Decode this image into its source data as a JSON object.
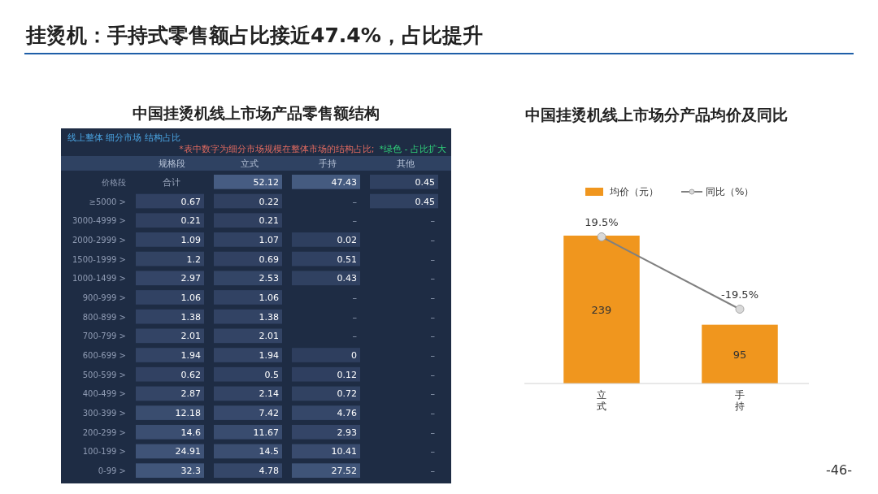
{
  "chart_data": [
    {
      "type": "other",
      "title": "挂烫机：手持式零售额占比接近47.4%，占比提升",
      "annotations": [
        "-46-"
      ]
    },
    {
      "type": "heatmap",
      "title": "中国挂烫机线上市场产品零售额结构",
      "subtitle": "线上整体 细分市场 结构占比",
      "annotations": [
        "*表中数字为细分市场规模在整体市场的结构占比;",
        "*绿色 - 占比扩大"
      ],
      "categories": [
        "规格段",
        "立式",
        "手持",
        "其他"
      ],
      "y_categories": [
        "价格段",
        "≥5000 >",
        "3000-4999 >",
        "2000-2999 >",
        "1500-1999 >",
        "1000-1499 >",
        "900-999 >",
        "800-899 >",
        "700-799 >",
        "600-699 >",
        "500-599 >",
        "400-499 >",
        "300-399 >",
        "200-299 >",
        "100-199 >",
        "0-99 >"
      ],
      "cells": [
        [
          null,
          52.12,
          47.43,
          0.45
        ],
        [
          0.67,
          0.22,
          null,
          0.45
        ],
        [
          0.21,
          0.21,
          null,
          null
        ],
        [
          1.09,
          1.07,
          0.02,
          null
        ],
        [
          1.2,
          0.69,
          0.51,
          null
        ],
        [
          2.97,
          2.53,
          0.43,
          null
        ],
        [
          1.06,
          1.06,
          null,
          null
        ],
        [
          1.38,
          1.38,
          null,
          null
        ],
        [
          2.01,
          2.01,
          null,
          null
        ],
        [
          1.94,
          1.94,
          0,
          null
        ],
        [
          0.62,
          0.5,
          0.12,
          null
        ],
        [
          2.87,
          2.14,
          0.72,
          null
        ],
        [
          12.18,
          7.42,
          4.76,
          null
        ],
        [
          14.6,
          11.67,
          2.93,
          null
        ],
        [
          24.91,
          14.5,
          10.41,
          null
        ],
        [
          32.3,
          4.78,
          27.52,
          null
        ]
      ],
      "cell_labels": [
        [
          "合计",
          "52.12",
          "47.43",
          "0.45"
        ],
        [
          "0.67",
          "0.22",
          "–",
          "0.45"
        ],
        [
          "0.21",
          "0.21",
          "–",
          "–"
        ],
        [
          "1.09",
          "1.07",
          "0.02",
          "–"
        ],
        [
          "1.2",
          "0.69",
          "0.51",
          "–"
        ],
        [
          "2.97",
          "2.53",
          "0.43",
          "–"
        ],
        [
          "1.06",
          "1.06",
          "–",
          "–"
        ],
        [
          "1.38",
          "1.38",
          "–",
          "–"
        ],
        [
          "2.01",
          "2.01",
          "–",
          "–"
        ],
        [
          "1.94",
          "1.94",
          "0",
          "–"
        ],
        [
          "0.62",
          "0.5",
          "0.12",
          "–"
        ],
        [
          "2.87",
          "2.14",
          "0.72",
          "–"
        ],
        [
          "12.18",
          "7.42",
          "4.76",
          "–"
        ],
        [
          "14.6",
          "11.67",
          "2.93",
          "–"
        ],
        [
          "24.91",
          "14.5",
          "10.41",
          "–"
        ],
        [
          "32.3",
          "4.78",
          "27.52",
          "–"
        ]
      ]
    },
    {
      "type": "bar",
      "title": "中国挂烫机线上市场分产品均价及同比",
      "categories": [
        "立式",
        "手持"
      ],
      "legend": "top",
      "data_labels": true,
      "series": [
        {
          "name": "均价（元）",
          "color": "#f0961e",
          "values": [
            239,
            95
          ]
        },
        {
          "name": "同比（%）",
          "type": "line",
          "axis": "y2",
          "color": "#808080",
          "marker": "circle",
          "values": [
            19.5,
            -19.5
          ],
          "value_labels": [
            "19.5%",
            "-19.5%"
          ]
        }
      ]
    }
  ]
}
